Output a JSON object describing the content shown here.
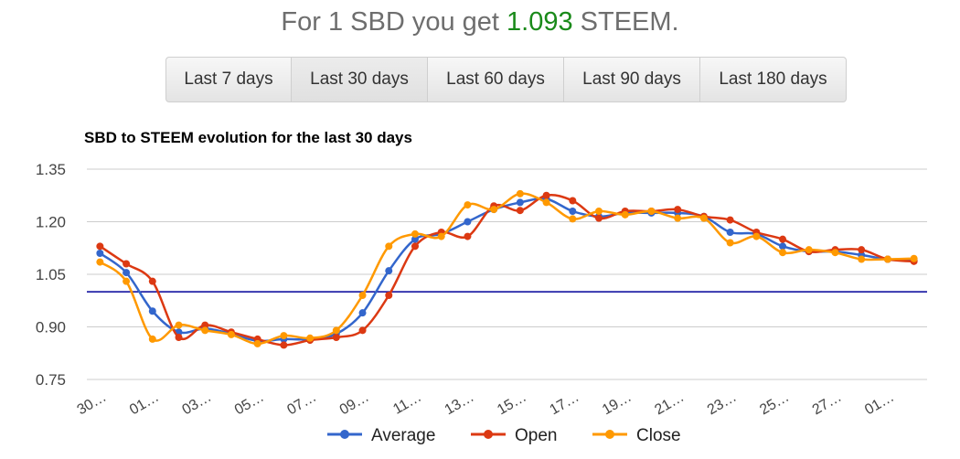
{
  "headline": {
    "prefix": "For 1 SBD you get ",
    "rate": "1.093",
    "suffix": " STEEM."
  },
  "range_buttons": [
    {
      "label": "Last 7 days"
    },
    {
      "label": "Last 30 days"
    },
    {
      "label": "Last 60 days"
    },
    {
      "label": "Last 90 days"
    },
    {
      "label": "Last 180 days"
    }
  ],
  "chart_data": {
    "type": "line",
    "title": "SBD to STEEM evolution for the last 30 days",
    "xlabel": "",
    "ylabel": "",
    "ylim": [
      0.75,
      1.35
    ],
    "yticks": [
      "0.75",
      "0.90",
      "1.05",
      "1.20",
      "1.35"
    ],
    "categories": [
      "30…",
      "",
      "01…",
      "",
      "03…",
      "",
      "05…",
      "",
      "07…",
      "",
      "09…",
      "",
      "11…",
      "",
      "13…",
      "",
      "15…",
      "",
      "17…",
      "",
      "19…",
      "",
      "21…",
      "",
      "23…",
      "",
      "25…",
      "",
      "27…",
      "",
      "01…",
      ""
    ],
    "reference_line": 1.0,
    "legend_position": "bottom",
    "grid": true,
    "series": [
      {
        "name": "Average",
        "color": "#3366cc",
        "values": [
          1.11,
          1.055,
          0.945,
          0.885,
          0.895,
          0.88,
          0.86,
          0.865,
          0.865,
          0.88,
          0.94,
          1.06,
          1.15,
          1.165,
          1.2,
          1.235,
          1.255,
          1.265,
          1.23,
          1.215,
          1.225,
          1.225,
          1.225,
          1.215,
          1.17,
          1.165,
          1.13,
          1.115,
          1.115,
          1.105,
          1.093,
          1.09
        ]
      },
      {
        "name": "Open",
        "color": "#dc3912",
        "values": [
          1.13,
          1.08,
          1.03,
          0.87,
          0.905,
          0.885,
          0.865,
          0.848,
          0.862,
          0.87,
          0.89,
          0.99,
          1.13,
          1.17,
          1.158,
          1.245,
          1.232,
          1.275,
          1.26,
          1.21,
          1.23,
          1.23,
          1.235,
          1.215,
          1.205,
          1.17,
          1.15,
          1.115,
          1.12,
          1.12,
          1.093,
          1.087
        ]
      },
      {
        "name": "Close",
        "color": "#ff9900",
        "values": [
          1.085,
          1.03,
          0.865,
          0.905,
          0.89,
          0.878,
          0.852,
          0.875,
          0.868,
          0.89,
          0.99,
          1.13,
          1.165,
          1.158,
          1.248,
          1.235,
          1.28,
          1.255,
          1.208,
          1.23,
          1.22,
          1.23,
          1.21,
          1.21,
          1.14,
          1.158,
          1.112,
          1.12,
          1.112,
          1.093,
          1.093,
          1.095
        ]
      }
    ]
  }
}
